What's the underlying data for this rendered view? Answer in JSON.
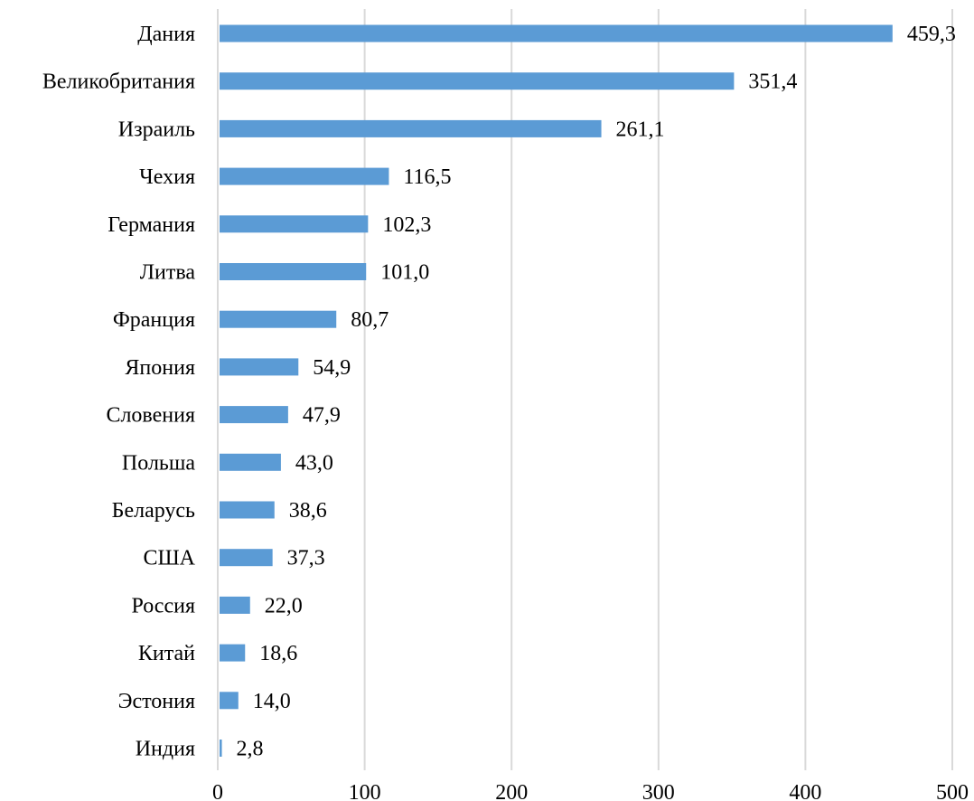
{
  "chart_data": {
    "type": "bar",
    "orientation": "horizontal",
    "title": "",
    "xlabel": "",
    "ylabel": "",
    "xlim": [
      0,
      500
    ],
    "x_ticks": [
      0,
      100,
      200,
      300,
      400,
      500
    ],
    "x_tick_labels": [
      "0",
      "100",
      "200",
      "300",
      "400",
      "500"
    ],
    "grid": true,
    "legend": "none",
    "bar_color": "#5b9bd5",
    "grid_color": "#d9d9d9",
    "categories": [
      "Дания",
      "Великобритания",
      "Израиль",
      "Чехия",
      "Германия",
      "Литва",
      "Франция",
      "Япония",
      "Словения",
      "Польша",
      "Беларусь",
      "США",
      "Россия",
      "Китай",
      "Эстония",
      "Индия"
    ],
    "values": [
      459.3,
      351.4,
      261.1,
      116.5,
      102.3,
      101.0,
      80.7,
      54.9,
      47.9,
      43.0,
      38.6,
      37.3,
      22.0,
      18.6,
      14.0,
      2.8
    ],
    "data_labels": [
      "459,3",
      "351,4",
      "261,1",
      "116,5",
      "102,3",
      "101,0",
      "80,7",
      "54,9",
      "47,9",
      "43,0",
      "38,6",
      "37,3",
      "22,0",
      "18,6",
      "14,0",
      "2,8"
    ]
  }
}
